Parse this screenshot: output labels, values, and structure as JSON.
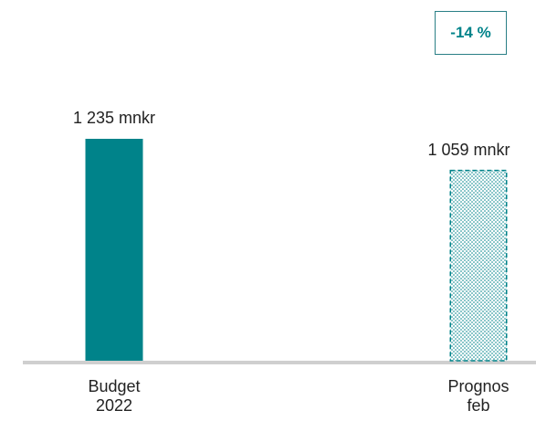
{
  "chart_data": {
    "type": "bar",
    "categories": [
      "Budget 2022",
      "Prognos feb"
    ],
    "values": [
      1235,
      1059
    ],
    "value_labels": [
      "1 235 mnkr",
      "1 059 mnkr"
    ],
    "color": "#00838a",
    "fill_styles": [
      "solid",
      "dotted"
    ],
    "annotation": "-14 %"
  }
}
